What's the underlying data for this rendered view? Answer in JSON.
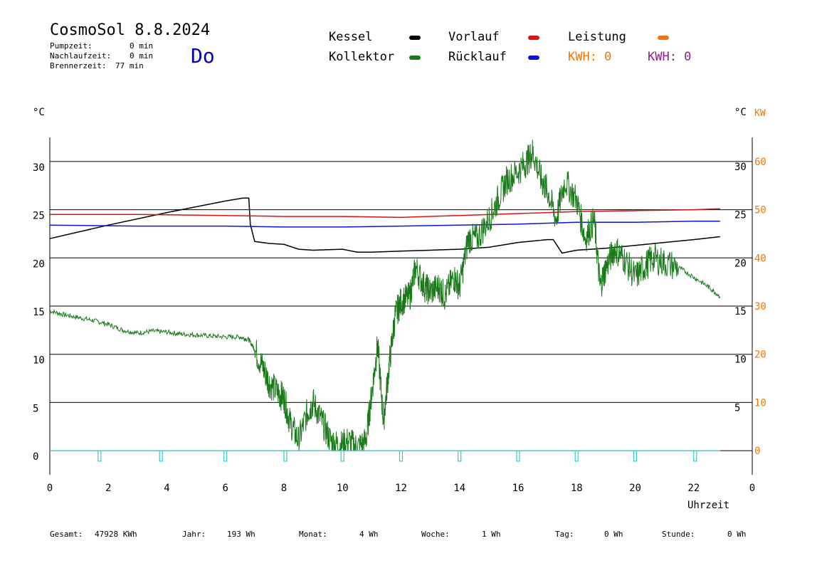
{
  "header": {
    "title": "CosmoSol 8.8.2024",
    "day": "Do",
    "info": [
      {
        "label": "Pumpzeit:",
        "value": "0 min"
      },
      {
        "label": "Nachlaufzeit:",
        "value": "0 min"
      },
      {
        "label": "Brennerzeit:",
        "value": "77 min"
      }
    ]
  },
  "legend": {
    "kessel": {
      "label": "Kessel",
      "color": "#000000"
    },
    "kollektor": {
      "label": "Kollektor",
      "color": "#1a7a1a"
    },
    "vorlauf": {
      "label": "Vorlauf",
      "color": "#dd1111"
    },
    "ruecklauf": {
      "label": "Rücklauf",
      "color": "#1111dd"
    },
    "leistung": {
      "label": "Leistung",
      "color": "#ee7711"
    },
    "kwh_orange": {
      "label": "KWH: 0",
      "color": "#ee7711"
    },
    "kwh_purple": {
      "label": "KWH: 0",
      "color": "#882288"
    }
  },
  "axes": {
    "left_unit": "°C",
    "right_unit_c": "°C",
    "right_unit_kw": "KW",
    "x_label": "Uhrzeit",
    "left_ticks": [
      "30",
      "25",
      "20",
      "15",
      "10",
      "5",
      "0"
    ],
    "right_c_ticks": [
      "30",
      "25",
      "20",
      "15",
      "10",
      "5"
    ],
    "right_kw_ticks": [
      "60",
      "50",
      "40",
      "30",
      "20",
      "10",
      "0"
    ],
    "x_ticks": [
      "0",
      "2",
      "4",
      "6",
      "8",
      "10",
      "12",
      "14",
      "16",
      "18",
      "20",
      "22",
      "0"
    ]
  },
  "chart_data": {
    "type": "line",
    "x_unit": "hours",
    "xlim": [
      0,
      24
    ],
    "ylim": [
      -2.5,
      32.5
    ],
    "y2lim": [
      -5,
      65
    ],
    "series": [
      {
        "name": "Kessel",
        "color": "#000000",
        "x": [
          0,
          2,
          4,
          5,
          6,
          6.6,
          6.8,
          6.85,
          7,
          7.5,
          8,
          8.5,
          9,
          10,
          10.5,
          11,
          12,
          13,
          14,
          15,
          16,
          17,
          17.2,
          17.5,
          18,
          19,
          20,
          21,
          22,
          22.9
        ],
        "y": [
          22.0,
          23.4,
          24.7,
          25.3,
          25.9,
          26.2,
          26.2,
          23.5,
          21.7,
          21.5,
          21.4,
          20.9,
          20.8,
          20.9,
          20.6,
          20.6,
          20.7,
          20.8,
          20.9,
          21.1,
          21.6,
          21.9,
          21.9,
          20.5,
          20.8,
          21.0,
          21.3,
          21.6,
          21.9,
          22.2
        ]
      },
      {
        "name": "Vorlauf",
        "color": "#dd1111",
        "x": [
          0,
          3,
          6,
          8,
          10,
          12,
          14,
          16,
          18,
          20,
          22,
          22.9
        ],
        "y": [
          24.5,
          24.5,
          24.4,
          24.3,
          24.3,
          24.2,
          24.4,
          24.6,
          24.8,
          24.9,
          25.0,
          25.1
        ]
      },
      {
        "name": "Rücklauf",
        "color": "#1111dd",
        "x": [
          0,
          3,
          6,
          8,
          10,
          12,
          14,
          16,
          18,
          20,
          22,
          22.9
        ],
        "y": [
          23.4,
          23.3,
          23.3,
          23.2,
          23.2,
          23.3,
          23.4,
          23.5,
          23.7,
          23.7,
          23.8,
          23.8
        ]
      },
      {
        "name": "Kollektor",
        "color": "#1a7a1a",
        "x": [
          0,
          0.5,
          1,
          1.5,
          2,
          2.5,
          3,
          3.5,
          4,
          4.5,
          5,
          5.5,
          6,
          6.5,
          6.8,
          7,
          7.3,
          7.5,
          7.8,
          8,
          8.2,
          8.5,
          8.8,
          9,
          9.3,
          9.6,
          9.9,
          10.2,
          10.5,
          10.8,
          11,
          11.2,
          11.4,
          11.6,
          11.8,
          12,
          12.3,
          12.5,
          12.8,
          13,
          13.3,
          13.5,
          13.8,
          14,
          14.3,
          14.6,
          15,
          15.3,
          15.6,
          16,
          16.3,
          16.5,
          16.8,
          17,
          17.3,
          17.6,
          18,
          18.3,
          18.6,
          18.8,
          19,
          19.3,
          19.6,
          20,
          20.3,
          20.6,
          21,
          21.5,
          22,
          22.5,
          22.9
        ],
        "y": [
          14.5,
          14.1,
          13.8,
          13.5,
          13.1,
          12.5,
          12.2,
          12.4,
          12.3,
          12.1,
          12.0,
          11.9,
          11.8,
          11.8,
          11.5,
          10.5,
          8.5,
          7,
          6,
          5.5,
          3,
          1,
          4,
          5,
          3,
          1,
          0.5,
          1,
          0.3,
          1,
          6,
          11,
          3,
          9,
          14,
          15.5,
          16,
          19,
          17,
          16.5,
          17,
          16,
          18,
          17,
          22,
          22,
          24,
          26,
          28,
          29,
          30,
          31,
          28,
          27,
          24,
          28,
          26,
          22,
          24,
          17,
          19,
          21,
          20,
          18,
          19,
          20,
          19.5,
          19,
          18,
          17,
          16
        ],
        "noisy": true
      },
      {
        "name": "Pump pulses",
        "color": "#33cccc",
        "x": [
          1.65,
          3.75,
          5.95,
          8.0,
          9.95,
          11.95,
          13.95,
          15.95,
          17.95,
          19.95,
          22.0
        ],
        "y": [
          -0.5,
          -0.5,
          -0.5,
          -0.5,
          -0.5,
          -0.5,
          -0.5,
          -0.5,
          -0.5,
          -0.5,
          -0.5
        ]
      }
    ],
    "horizontal_lines_y": [
      30,
      25,
      20,
      15,
      10,
      5,
      0
    ],
    "grid": true
  },
  "footer": [
    {
      "label": "Gesamt:",
      "value": "47928 KWh"
    },
    {
      "label": "Jahr:",
      "value": "193 Wh"
    },
    {
      "label": "Monat:",
      "value": "4 Wh"
    },
    {
      "label": "Woche:",
      "value": "1 Wh"
    },
    {
      "label": "Tag:",
      "value": "0 Wh"
    },
    {
      "label": "Stunde:",
      "value": "0 Wh"
    }
  ]
}
